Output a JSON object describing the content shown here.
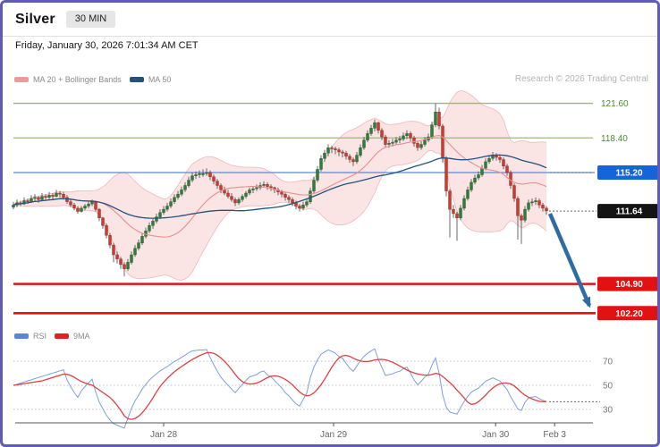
{
  "page": {
    "border_color": "#5f5bb7"
  },
  "header": {
    "title": "Silver",
    "timeframe_badge": "30 MIN"
  },
  "date_line": "Friday, January 30, 2026 7:01:34 AM CET",
  "main_legend": {
    "items": [
      {
        "label": "MA 20 + Bollinger Bands",
        "color": "#ef9a9a"
      },
      {
        "label": "MA 50",
        "color": "#23527c"
      }
    ],
    "attribution": "Research © 2026 Trading Central"
  },
  "rsi_legend": {
    "items": [
      {
        "label": "RSI",
        "color": "#5b86d5"
      },
      {
        "label": "9MA",
        "color": "#e02020"
      }
    ]
  },
  "colors": {
    "up": "#2f7d3a",
    "up_border": "#1e5527",
    "down": "#cf3a30",
    "down_border": "#8f241d",
    "wick": "#444444",
    "band_fill": "rgba(243,170,170,0.32)",
    "band_edge": "rgba(228,140,140,0.55)",
    "ma20": "#e98f8f",
    "ma50": "#23527c",
    "axis": "#555555",
    "axis_text": "#666666",
    "grid_dotted": "#c3c3c3",
    "dotted_connector": "#666666",
    "rsi_line": "#7b9fe0",
    "rsi_ma_line": "#e04040"
  },
  "chart_data": {
    "type": "candlestick",
    "symbol": "Silver",
    "interval": "30 MIN",
    "candle_format": "[open, high, low, close]",
    "y_axis": {
      "visible_range": [
        101.5,
        122.4
      ]
    },
    "x_axis": {
      "ticks": [
        {
          "label": "Jan 28",
          "index": 42
        },
        {
          "label": "Jan 29",
          "index": 89.5
        },
        {
          "label": "Jan 30",
          "index": 134.8
        },
        {
          "label": "Feb 3",
          "index": 151.3
        }
      ]
    },
    "levels": [
      {
        "value": 121.6,
        "label": "121.60",
        "style": "line-text",
        "color": "#4d8b31",
        "line_color": "#9cb77c",
        "thick": false
      },
      {
        "value": 118.4,
        "label": "118.40",
        "style": "line-text",
        "color": "#4d8b31",
        "line_color": "#9cb77c",
        "thick": false
      },
      {
        "value": 115.2,
        "label": "115.20",
        "style": "line-box",
        "color": "#1565d8",
        "line_color": "#5b86d5",
        "thick": false,
        "dotted_connector": true
      },
      {
        "value": 104.9,
        "label": "104.90",
        "style": "line-box",
        "color": "#e31212",
        "line_color": "#e31212",
        "thick": true
      },
      {
        "value": 102.2,
        "label": "102.20",
        "style": "line-box",
        "color": "#e31212",
        "line_color": "#e31212",
        "thick": true
      }
    ],
    "last_price": {
      "value": 111.64,
      "label": "111.64",
      "box_color": "#141414"
    },
    "forecast_arrow": {
      "from": {
        "index": 150,
        "price": 111.4
      },
      "to": {
        "index": 161,
        "price": 102.9
      },
      "color": "#2e6da4"
    },
    "indicators": {
      "ma20_period": 20,
      "ma50_period": 50,
      "bollinger_mult": 2,
      "rsi_period": 14,
      "rsi_ma_period": 9,
      "rsi_ticks": [
        70,
        50,
        30
      ]
    },
    "candles": [
      [
        112.0,
        112.5,
        111.8,
        112.2
      ],
      [
        112.2,
        112.7,
        112.0,
        112.4
      ],
      [
        112.4,
        112.6,
        112.1,
        112.3
      ],
      [
        112.3,
        112.9,
        112.2,
        112.6
      ],
      [
        112.6,
        112.8,
        112.3,
        112.5
      ],
      [
        112.5,
        113.1,
        112.4,
        112.8
      ],
      [
        112.8,
        113.2,
        112.6,
        112.9
      ],
      [
        112.9,
        113.0,
        112.4,
        112.7
      ],
      [
        112.7,
        113.3,
        112.6,
        113.0
      ],
      [
        113.0,
        113.2,
        112.6,
        112.9
      ],
      [
        112.9,
        113.4,
        112.7,
        113.1
      ],
      [
        113.1,
        113.3,
        112.7,
        113.0
      ],
      [
        113.0,
        113.6,
        112.9,
        113.3
      ],
      [
        113.3,
        113.5,
        112.9,
        113.2
      ],
      [
        113.2,
        113.4,
        112.7,
        112.9
      ],
      [
        112.9,
        113.1,
        112.3,
        112.5
      ],
      [
        112.5,
        112.7,
        112.0,
        112.2
      ],
      [
        112.2,
        112.4,
        111.7,
        111.9
      ],
      [
        111.9,
        112.1,
        111.4,
        111.6
      ],
      [
        111.6,
        112.1,
        111.5,
        111.9
      ],
      [
        111.9,
        112.3,
        111.7,
        112.1
      ],
      [
        112.1,
        112.5,
        111.9,
        112.3
      ],
      [
        112.3,
        112.7,
        112.1,
        112.5
      ],
      [
        112.5,
        112.6,
        111.6,
        111.8
      ],
      [
        111.8,
        111.9,
        110.7,
        111.0
      ],
      [
        111.0,
        111.1,
        110.0,
        110.3
      ],
      [
        110.3,
        110.5,
        109.1,
        109.4
      ],
      [
        109.4,
        109.6,
        108.2,
        108.5
      ],
      [
        108.5,
        108.7,
        106.9,
        107.6
      ],
      [
        107.6,
        107.9,
        106.8,
        107.2
      ],
      [
        107.2,
        107.4,
        106.3,
        106.7
      ],
      [
        106.7,
        106.9,
        105.6,
        106.3
      ],
      [
        106.3,
        107.2,
        106.1,
        106.9
      ],
      [
        106.9,
        107.9,
        106.7,
        107.6
      ],
      [
        107.6,
        108.5,
        107.4,
        108.2
      ],
      [
        108.2,
        109.0,
        108.0,
        108.7
      ],
      [
        108.7,
        109.6,
        108.5,
        109.3
      ],
      [
        109.3,
        110.1,
        109.1,
        109.8
      ],
      [
        109.8,
        110.6,
        109.6,
        110.3
      ],
      [
        110.3,
        110.9,
        110.0,
        110.7
      ],
      [
        110.7,
        111.4,
        110.5,
        111.1
      ],
      [
        111.1,
        111.8,
        110.9,
        111.5
      ],
      [
        111.5,
        112.1,
        111.3,
        111.8
      ],
      [
        111.8,
        112.4,
        111.6,
        112.1
      ],
      [
        112.1,
        112.8,
        111.9,
        112.5
      ],
      [
        112.5,
        113.2,
        112.3,
        112.9
      ],
      [
        112.9,
        113.5,
        112.7,
        113.2
      ],
      [
        113.2,
        113.9,
        113.0,
        113.6
      ],
      [
        113.6,
        114.3,
        113.4,
        114.0
      ],
      [
        114.0,
        114.8,
        113.8,
        114.5
      ],
      [
        114.5,
        115.2,
        114.3,
        114.9
      ],
      [
        114.9,
        115.3,
        114.6,
        115.0
      ],
      [
        115.0,
        115.4,
        114.7,
        115.1
      ],
      [
        115.1,
        115.5,
        114.8,
        115.1
      ],
      [
        115.1,
        115.6,
        114.9,
        115.2
      ],
      [
        115.2,
        115.4,
        114.5,
        114.8
      ],
      [
        114.8,
        115.0,
        114.1,
        114.4
      ],
      [
        114.4,
        114.6,
        113.7,
        114.0
      ],
      [
        114.0,
        114.2,
        113.3,
        113.6
      ],
      [
        113.6,
        113.9,
        113.1,
        113.3
      ],
      [
        113.3,
        113.6,
        112.8,
        113.0
      ],
      [
        113.0,
        113.3,
        112.5,
        112.7
      ],
      [
        112.7,
        112.9,
        112.1,
        112.4
      ],
      [
        112.4,
        112.9,
        112.2,
        112.7
      ],
      [
        112.7,
        113.2,
        112.5,
        113.0
      ],
      [
        113.0,
        113.5,
        112.8,
        113.3
      ],
      [
        113.3,
        113.8,
        113.1,
        113.6
      ],
      [
        113.6,
        113.9,
        113.3,
        113.7
      ],
      [
        113.7,
        114.1,
        113.5,
        113.8
      ],
      [
        113.8,
        114.3,
        113.6,
        114.0
      ],
      [
        114.0,
        114.4,
        113.8,
        114.1
      ],
      [
        114.1,
        114.3,
        113.6,
        113.9
      ],
      [
        113.9,
        114.1,
        113.5,
        113.8
      ],
      [
        113.8,
        113.9,
        113.3,
        113.6
      ],
      [
        113.6,
        113.8,
        113.1,
        113.4
      ],
      [
        113.4,
        113.6,
        112.9,
        113.2
      ],
      [
        113.2,
        113.4,
        112.6,
        112.9
      ],
      [
        112.9,
        113.1,
        112.4,
        112.7
      ],
      [
        112.7,
        112.9,
        112.1,
        112.4
      ],
      [
        112.4,
        112.6,
        111.8,
        112.1
      ],
      [
        112.1,
        112.3,
        111.6,
        111.9
      ],
      [
        111.9,
        112.5,
        111.7,
        112.2
      ],
      [
        112.2,
        112.8,
        112.0,
        112.5
      ],
      [
        112.5,
        113.8,
        112.3,
        113.5
      ],
      [
        113.5,
        114.8,
        113.3,
        114.5
      ],
      [
        114.5,
        115.8,
        114.3,
        115.5
      ],
      [
        115.5,
        116.8,
        115.3,
        116.5
      ],
      [
        116.5,
        117.3,
        116.2,
        117.0
      ],
      [
        117.0,
        117.8,
        116.7,
        117.5
      ],
      [
        117.5,
        117.7,
        117.0,
        117.4
      ],
      [
        117.4,
        117.6,
        116.9,
        117.3
      ],
      [
        117.3,
        117.5,
        116.7,
        117.1
      ],
      [
        117.1,
        117.3,
        116.6,
        117.0
      ],
      [
        117.0,
        117.2,
        116.4,
        116.7
      ],
      [
        116.7,
        116.9,
        116.1,
        116.4
      ],
      [
        116.4,
        116.6,
        115.8,
        116.2
      ],
      [
        116.2,
        117.1,
        116.0,
        116.8
      ],
      [
        116.8,
        117.8,
        116.6,
        117.5
      ],
      [
        117.5,
        118.5,
        117.3,
        118.2
      ],
      [
        118.2,
        119.1,
        118.0,
        118.8
      ],
      [
        118.8,
        119.6,
        118.6,
        119.3
      ],
      [
        119.3,
        120.1,
        119.0,
        119.8
      ],
      [
        119.8,
        119.9,
        118.8,
        119.1
      ],
      [
        119.1,
        119.3,
        118.2,
        118.5
      ],
      [
        118.5,
        118.7,
        117.5,
        117.8
      ],
      [
        117.8,
        118.2,
        117.5,
        117.9
      ],
      [
        117.9,
        118.3,
        117.6,
        118.0
      ],
      [
        118.0,
        118.5,
        117.8,
        118.2
      ],
      [
        118.2,
        118.6,
        117.9,
        118.3
      ],
      [
        118.3,
        118.9,
        118.1,
        118.6
      ],
      [
        118.6,
        119.1,
        118.3,
        118.8
      ],
      [
        118.8,
        119.0,
        118.1,
        118.4
      ],
      [
        118.4,
        118.6,
        117.6,
        117.9
      ],
      [
        117.9,
        118.1,
        117.2,
        117.5
      ],
      [
        117.5,
        118.1,
        117.3,
        117.8
      ],
      [
        117.8,
        118.5,
        117.6,
        118.2
      ],
      [
        118.2,
        118.8,
        118.0,
        118.5
      ],
      [
        118.5,
        119.9,
        118.3,
        119.6
      ],
      [
        119.6,
        121.6,
        119.4,
        120.8
      ],
      [
        120.8,
        121.2,
        119.2,
        119.5
      ],
      [
        119.5,
        119.7,
        116.1,
        116.5
      ],
      [
        116.5,
        116.7,
        113.0,
        113.5
      ],
      [
        113.5,
        113.7,
        109.2,
        111.8
      ],
      [
        111.8,
        112.2,
        111.0,
        111.4
      ],
      [
        111.4,
        111.6,
        108.9,
        111.0
      ],
      [
        111.0,
        112.2,
        110.8,
        111.9
      ],
      [
        111.9,
        113.1,
        111.7,
        112.8
      ],
      [
        112.8,
        113.9,
        112.6,
        113.6
      ],
      [
        113.6,
        114.6,
        113.4,
        114.3
      ],
      [
        114.3,
        115.0,
        114.1,
        114.7
      ],
      [
        114.7,
        115.3,
        114.5,
        115.0
      ],
      [
        115.0,
        115.9,
        114.8,
        115.6
      ],
      [
        115.6,
        116.5,
        115.4,
        116.2
      ],
      [
        116.2,
        116.8,
        116.0,
        116.5
      ],
      [
        116.5,
        117.1,
        116.3,
        116.8
      ],
      [
        116.8,
        117.0,
        116.3,
        116.6
      ],
      [
        116.6,
        116.8,
        116.1,
        116.4
      ],
      [
        116.4,
        116.6,
        115.5,
        115.8
      ],
      [
        115.8,
        116.0,
        114.9,
        115.2
      ],
      [
        115.2,
        115.4,
        113.7,
        114.0
      ],
      [
        114.0,
        114.2,
        112.5,
        112.8
      ],
      [
        112.8,
        113.0,
        109.0,
        111.2
      ],
      [
        111.2,
        111.4,
        108.6,
        110.8
      ],
      [
        110.8,
        112.1,
        110.6,
        111.8
      ],
      [
        111.8,
        112.7,
        111.6,
        112.4
      ],
      [
        112.4,
        112.8,
        112.1,
        112.5
      ],
      [
        112.5,
        112.9,
        112.2,
        112.6
      ],
      [
        112.6,
        112.8,
        111.9,
        112.2
      ],
      [
        112.2,
        112.4,
        111.6,
        111.9
      ],
      [
        111.9,
        112.1,
        111.3,
        111.64
      ]
    ]
  }
}
